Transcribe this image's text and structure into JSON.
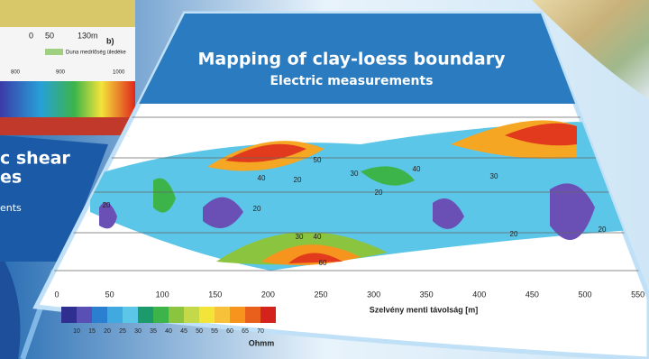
{
  "top_left_figure": {
    "scale": [
      "0",
      "50",
      "130m"
    ],
    "legend": "Duna medrlőség üledéke",
    "panel": "b)",
    "axis_ticks": [
      "800",
      "900",
      "1000"
    ]
  },
  "left_card": {
    "title_lines": [
      "c shear",
      "es"
    ],
    "text": "ents"
  },
  "center_card": {
    "title": "Mapping of clay-loess boundary",
    "subtitle": "Electric measurements",
    "figure": {
      "x_ticks": [
        "0",
        "50",
        "100",
        "150",
        "200",
        "250",
        "300",
        "350",
        "400",
        "450",
        "500",
        "550"
      ],
      "x_label": "Szelvény menti távolság [m]",
      "colorbar_ticks": [
        "10",
        "15",
        "20",
        "25",
        "30",
        "35",
        "40",
        "45",
        "50",
        "55",
        "60",
        "65",
        "70"
      ],
      "colorbar_unit": "Ohmm",
      "contour_labels": [
        "50",
        "40",
        "20",
        "30",
        "40",
        "20",
        "30",
        "20",
        "20",
        "30",
        "40",
        "60",
        "20",
        "20"
      ]
    }
  }
}
